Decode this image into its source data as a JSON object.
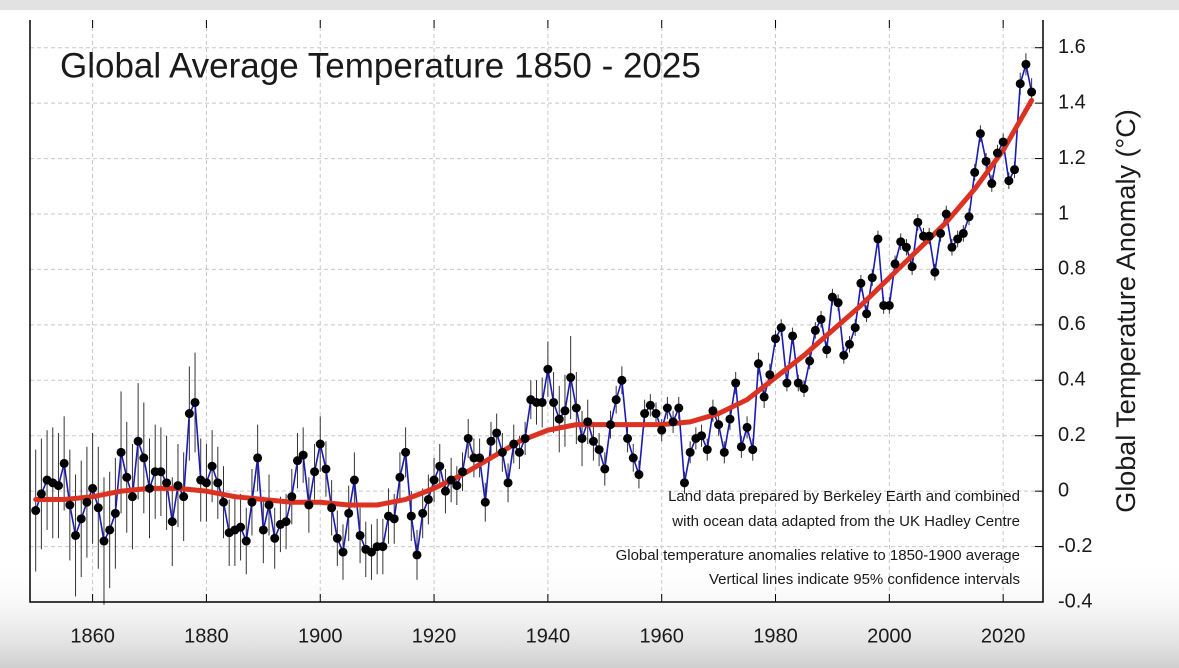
{
  "chart_data": {
    "type": "line",
    "title": "Global Average Temperature 1850 - 2025",
    "y_label": "Global Temperature  Anomaly (°C)",
    "annotations": [
      "Land data prepared by Berkeley Earth and combined",
      "with ocean data adapted from the UK Hadley Centre",
      "Global temperature anomalies relative to 1850-1900 average",
      "Vertical lines indicate 95% confidence intervals"
    ],
    "xlim": [
      1849,
      2027
    ],
    "xticks": [
      1860,
      1880,
      1900,
      1920,
      1940,
      1960,
      1980,
      2000,
      2020
    ],
    "ylim": [
      -0.4,
      1.7
    ],
    "yticks": [
      1.6,
      1.4,
      1.2,
      1,
      0.8,
      0.6,
      0.4,
      0.2,
      0,
      -0.2,
      -0.4
    ],
    "grid": true,
    "series": [
      {
        "color": "#1a1ab4",
        "x": [
          1850,
          1851,
          1852,
          1853,
          1854,
          1855,
          1856,
          1857,
          1858,
          1859,
          1860,
          1861,
          1862,
          1863,
          1864,
          1865,
          1866,
          1867,
          1868,
          1869,
          1870,
          1871,
          1872,
          1873,
          1874,
          1875,
          1876,
          1877,
          1878,
          1879,
          1880,
          1881,
          1882,
          1883,
          1884,
          1885,
          1886,
          1887,
          1888,
          1889,
          1890,
          1891,
          1892,
          1893,
          1894,
          1895,
          1896,
          1897,
          1898,
          1899,
          1900,
          1901,
          1902,
          1903,
          1904,
          1905,
          1906,
          1907,
          1908,
          1909,
          1910,
          1911,
          1912,
          1913,
          1914,
          1915,
          1916,
          1917,
          1918,
          1919,
          1920,
          1921,
          1922,
          1923,
          1924,
          1925,
          1926,
          1927,
          1928,
          1929,
          1930,
          1931,
          1932,
          1933,
          1934,
          1935,
          1936,
          1937,
          1938,
          1939,
          1940,
          1941,
          1942,
          1943,
          1944,
          1945,
          1946,
          1947,
          1948,
          1949,
          1950,
          1951,
          1952,
          1953,
          1954,
          1955,
          1956,
          1957,
          1958,
          1959,
          1960,
          1961,
          1962,
          1963,
          1964,
          1965,
          1966,
          1967,
          1968,
          1969,
          1970,
          1971,
          1972,
          1973,
          1974,
          1975,
          1976,
          1977,
          1978,
          1979,
          1980,
          1981,
          1982,
          1983,
          1984,
          1985,
          1986,
          1987,
          1988,
          1989,
          1990,
          1991,
          1992,
          1993,
          1994,
          1995,
          1996,
          1997,
          1998,
          1999,
          2000,
          2001,
          2002,
          2003,
          2004,
          2005,
          2006,
          2007,
          2008,
          2009,
          2010,
          2011,
          2012,
          2013,
          2014,
          2015,
          2016,
          2017,
          2018,
          2019,
          2020,
          2021,
          2022,
          2023,
          2024,
          2025
        ],
        "values": [
          -0.07,
          -0.01,
          0.04,
          0.03,
          0.02,
          0.1,
          -0.05,
          -0.16,
          -0.1,
          -0.04,
          0.01,
          -0.06,
          -0.18,
          -0.14,
          -0.08,
          0.14,
          0.05,
          -0.02,
          0.18,
          0.12,
          0.01,
          0.07,
          0.07,
          0.03,
          -0.11,
          0.02,
          -0.02,
          0.28,
          0.32,
          0.04,
          0.03,
          0.09,
          0.03,
          -0.04,
          -0.15,
          -0.14,
          -0.13,
          -0.18,
          -0.04,
          0.12,
          -0.14,
          -0.05,
          -0.17,
          -0.12,
          -0.11,
          -0.02,
          0.11,
          0.13,
          -0.05,
          0.07,
          0.17,
          0.08,
          -0.06,
          -0.17,
          -0.22,
          -0.08,
          0.04,
          -0.16,
          -0.21,
          -0.22,
          -0.2,
          -0.2,
          -0.09,
          -0.1,
          0.05,
          0.14,
          -0.09,
          -0.23,
          -0.08,
          -0.03,
          0.04,
          0.09,
          0.0,
          0.04,
          0.02,
          0.07,
          0.19,
          0.12,
          0.12,
          -0.04,
          0.18,
          0.21,
          0.14,
          0.03,
          0.17,
          0.14,
          0.19,
          0.33,
          0.32,
          0.32,
          0.44,
          0.32,
          0.26,
          0.29,
          0.41,
          0.3,
          0.19,
          0.25,
          0.18,
          0.15,
          0.08,
          0.24,
          0.33,
          0.4,
          0.19,
          0.12,
          0.06,
          0.28,
          0.31,
          0.28,
          0.22,
          0.3,
          0.25,
          0.3,
          0.03,
          0.14,
          0.19,
          0.2,
          0.15,
          0.29,
          0.24,
          0.14,
          0.26,
          0.39,
          0.16,
          0.23,
          0.15,
          0.46,
          0.34,
          0.42,
          0.55,
          0.59,
          0.39,
          0.56,
          0.39,
          0.37,
          0.47,
          0.58,
          0.62,
          0.51,
          0.7,
          0.68,
          0.49,
          0.53,
          0.59,
          0.75,
          0.64,
          0.77,
          0.91,
          0.67,
          0.67,
          0.82,
          0.9,
          0.88,
          0.81,
          0.97,
          0.92,
          0.92,
          0.79,
          0.93,
          1.0,
          0.88,
          0.91,
          0.93,
          0.99,
          1.15,
          1.29,
          1.19,
          1.11,
          1.22,
          1.26,
          1.12,
          1.16,
          1.47,
          1.54,
          1.44
        ],
        "errors": [
          0.22,
          0.2,
          0.18,
          0.2,
          0.19,
          0.17,
          0.2,
          0.22,
          0.21,
          0.2,
          0.2,
          0.22,
          0.23,
          0.21,
          0.2,
          0.22,
          0.2,
          0.19,
          0.21,
          0.2,
          0.18,
          0.17,
          0.16,
          0.17,
          0.16,
          0.15,
          0.16,
          0.17,
          0.18,
          0.15,
          0.14,
          0.13,
          0.13,
          0.13,
          0.12,
          0.13,
          0.12,
          0.12,
          0.12,
          0.12,
          0.12,
          0.11,
          0.11,
          0.1,
          0.1,
          0.1,
          0.1,
          0.1,
          0.1,
          0.1,
          0.1,
          0.1,
          0.1,
          0.1,
          0.1,
          0.1,
          0.1,
          0.1,
          0.1,
          0.1,
          0.1,
          0.1,
          0.1,
          0.09,
          0.09,
          0.09,
          0.09,
          0.09,
          0.09,
          0.09,
          0.08,
          0.08,
          0.08,
          0.08,
          0.07,
          0.07,
          0.07,
          0.07,
          0.07,
          0.07,
          0.07,
          0.07,
          0.07,
          0.07,
          0.07,
          0.06,
          0.06,
          0.07,
          0.08,
          0.09,
          0.1,
          0.11,
          0.12,
          0.13,
          0.15,
          0.13,
          0.1,
          0.08,
          0.07,
          0.06,
          0.06,
          0.05,
          0.05,
          0.05,
          0.05,
          0.05,
          0.05,
          0.05,
          0.04,
          0.04,
          0.04,
          0.04,
          0.04,
          0.04,
          0.04,
          0.04,
          0.04,
          0.04,
          0.04,
          0.04,
          0.04,
          0.04,
          0.04,
          0.04,
          0.04,
          0.04,
          0.04,
          0.04,
          0.04,
          0.04,
          0.03,
          0.03,
          0.03,
          0.03,
          0.03,
          0.03,
          0.03,
          0.03,
          0.03,
          0.03,
          0.03,
          0.03,
          0.03,
          0.03,
          0.03,
          0.03,
          0.03,
          0.03,
          0.03,
          0.03,
          0.03,
          0.03,
          0.03,
          0.03,
          0.03,
          0.03,
          0.03,
          0.03,
          0.03,
          0.03,
          0.03,
          0.03,
          0.03,
          0.03,
          0.03,
          0.03,
          0.03,
          0.03,
          0.03,
          0.03,
          0.03,
          0.03,
          0.03,
          0.04,
          0.04,
          0.05
        ]
      },
      {
        "color": "#dc3222",
        "x": [
          1850,
          1855,
          1860,
          1865,
          1870,
          1875,
          1880,
          1885,
          1890,
          1895,
          1900,
          1905,
          1910,
          1915,
          1920,
          1925,
          1930,
          1935,
          1940,
          1945,
          1950,
          1955,
          1960,
          1965,
          1970,
          1975,
          1980,
          1985,
          1990,
          1995,
          2000,
          2005,
          2010,
          2015,
          2020,
          2025
        ],
        "values": [
          -0.03,
          -0.03,
          -0.02,
          0.0,
          0.01,
          0.01,
          0.0,
          -0.02,
          -0.03,
          -0.04,
          -0.04,
          -0.05,
          -0.05,
          -0.03,
          0.01,
          0.06,
          0.12,
          0.18,
          0.22,
          0.24,
          0.24,
          0.24,
          0.24,
          0.25,
          0.28,
          0.33,
          0.41,
          0.49,
          0.58,
          0.67,
          0.77,
          0.87,
          0.97,
          1.09,
          1.23,
          1.41
        ]
      }
    ]
  }
}
